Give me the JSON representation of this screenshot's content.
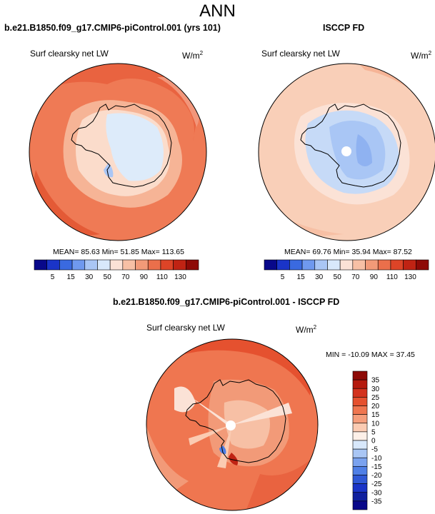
{
  "main_title": "ANN",
  "panels": {
    "model": {
      "header": "b.e21.B1850.f09_g17.CMIP6-piControl.001 (yrs 101)",
      "variable": "Surf clearsky net LW",
      "units_base": "W/m",
      "units_exp": "2",
      "stats": "MEAN=  85.63  Min=  51.85  Max= 113.65"
    },
    "obs": {
      "header": "ISCCP FD",
      "variable": "Surf clearsky net LW",
      "units_base": "W/m",
      "units_exp": "2",
      "stats": "MEAN=  69.76  Min=  35.94  Max=  87.52"
    },
    "diff": {
      "header": "b.e21.B1850.f09_g17.CMIP6-piControl.001 - ISCCP FD",
      "variable": "Surf clearsky net LW",
      "units_base": "W/m",
      "units_exp": "2",
      "stats": "MIN = -10.09 MAX =  37.45"
    }
  },
  "colorbar_abs": {
    "labels": [
      "5",
      "15",
      "30",
      "50",
      "70",
      "90",
      "110",
      "130"
    ],
    "colors": [
      "#08088a",
      "#1a34c8",
      "#3a6ae0",
      "#6f99ef",
      "#a9c6f5",
      "#d8e8fb",
      "#fbe2d6",
      "#f7c0a5",
      "#f29a78",
      "#ea6f4b",
      "#dd4427",
      "#c02313",
      "#8e0a06"
    ]
  },
  "colorbar_diff": {
    "labels": [
      "35",
      "30",
      "25",
      "20",
      "15",
      "10",
      "5",
      "0",
      "-5",
      "-10",
      "-15",
      "-20",
      "-25",
      "-30",
      "-35"
    ],
    "colors": [
      "#8e0a06",
      "#b51a0e",
      "#d3321d",
      "#e5512f",
      "#ef7650",
      "#f59e7c",
      "#fbcbb2",
      "#fdf0e8",
      "#d8e8fb",
      "#a9c6f5",
      "#7aa2ef",
      "#4f7fe6",
      "#2f58d6",
      "#1a34c8",
      "#10209f",
      "#08088a"
    ]
  }
}
